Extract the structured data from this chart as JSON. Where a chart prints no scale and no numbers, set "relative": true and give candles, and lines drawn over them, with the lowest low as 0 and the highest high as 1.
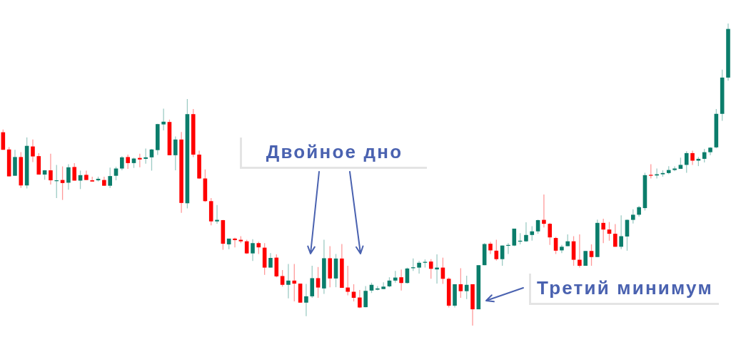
{
  "chart_data": {
    "type": "candlestick",
    "relative": true,
    "categories": [
      null,
      null,
      null,
      null,
      null,
      null,
      null,
      null,
      null,
      null,
      null,
      null,
      null,
      null,
      null,
      null,
      null,
      null,
      null,
      null,
      null,
      null,
      null,
      null,
      null,
      null,
      null,
      null,
      null,
      null,
      null,
      null,
      null,
      null,
      null,
      null,
      null,
      null,
      null,
      null,
      null,
      null,
      null,
      null,
      null,
      null,
      null,
      null,
      null,
      null,
      null,
      null,
      null,
      null,
      null,
      null,
      null,
      null,
      null,
      null,
      null,
      null,
      null,
      null,
      null,
      null,
      null,
      null,
      null,
      null,
      null,
      null,
      null,
      null,
      null,
      null,
      null,
      null,
      null,
      null,
      null,
      null,
      null,
      null,
      null,
      null,
      null,
      null,
      null,
      null,
      null,
      null,
      null,
      null,
      null,
      null,
      null,
      null,
      null,
      null,
      null,
      null,
      null,
      null,
      null,
      null,
      null,
      null,
      null,
      null,
      null,
      null,
      null,
      null,
      null,
      null,
      null,
      null,
      null,
      null,
      null,
      null,
      null
    ],
    "ohlc": [
      [
        0.64,
        0.649,
        0.582,
        0.582
      ],
      [
        0.583,
        0.591,
        0.494,
        0.494
      ],
      [
        0.496,
        0.582,
        0.496,
        0.558
      ],
      [
        0.558,
        0.574,
        0.456,
        0.464
      ],
      [
        0.464,
        0.623,
        0.454,
        0.595
      ],
      [
        0.593,
        0.616,
        0.541,
        0.56
      ],
      [
        0.561,
        0.571,
        0.5,
        0.5
      ],
      [
        0.5,
        0.515,
        0.483,
        0.514
      ],
      [
        0.514,
        0.569,
        0.467,
        0.481
      ],
      [
        0.481,
        0.532,
        0.422,
        0.481
      ],
      [
        0.482,
        0.527,
        0.416,
        0.472
      ],
      [
        0.473,
        0.534,
        0.45,
        0.524
      ],
      [
        0.525,
        0.538,
        0.48,
        0.48
      ],
      [
        0.48,
        0.513,
        0.452,
        0.498
      ],
      [
        0.499,
        0.513,
        0.482,
        0.482
      ],
      [
        0.481,
        0.493,
        0.477,
        0.477
      ],
      [
        0.481,
        0.493,
        0.477,
        0.486
      ],
      [
        0.482,
        0.493,
        0.463,
        0.463
      ],
      [
        0.463,
        0.523,
        0.456,
        0.495
      ],
      [
        0.496,
        0.526,
        0.481,
        0.52
      ],
      [
        0.52,
        0.561,
        0.514,
        0.557
      ],
      [
        0.558,
        0.566,
        0.519,
        0.538
      ],
      [
        0.538,
        0.556,
        0.522,
        0.553
      ],
      [
        0.555,
        0.569,
        0.524,
        0.55
      ],
      [
        0.552,
        0.586,
        0.536,
        0.557
      ],
      [
        0.557,
        0.585,
        0.513,
        0.583
      ],
      [
        0.581,
        0.668,
        0.565,
        0.667
      ],
      [
        0.666,
        0.718,
        0.646,
        0.675
      ],
      [
        0.674,
        0.682,
        0.564,
        0.564
      ],
      [
        0.564,
        0.626,
        0.514,
        0.616
      ],
      [
        0.616,
        0.641,
        0.373,
        0.406
      ],
      [
        0.405,
        0.75,
        0.388,
        0.7
      ],
      [
        0.7,
        0.717,
        0.558,
        0.566
      ],
      [
        0.566,
        0.579,
        0.485,
        0.487
      ],
      [
        0.487,
        0.517,
        0.409,
        0.412
      ],
      [
        0.412,
        0.422,
        0.332,
        0.345
      ],
      [
        0.345,
        0.399,
        0.337,
        0.35
      ],
      [
        0.349,
        0.35,
        0.251,
        0.271
      ],
      [
        0.269,
        0.288,
        0.253,
        0.288
      ],
      [
        0.288,
        0.291,
        0.259,
        0.283
      ],
      [
        0.284,
        0.296,
        0.273,
        0.279
      ],
      [
        0.279,
        0.284,
        0.237,
        0.239
      ],
      [
        0.239,
        0.286,
        0.214,
        0.273
      ],
      [
        0.273,
        0.278,
        0.237,
        0.259
      ],
      [
        0.258,
        0.273,
        0.168,
        0.192
      ],
      [
        0.192,
        0.24,
        0.192,
        0.224
      ],
      [
        0.225,
        0.236,
        0.16,
        0.163
      ],
      [
        0.164,
        0.184,
        0.129,
        0.135
      ],
      [
        0.135,
        0.204,
        0.09,
        0.149
      ],
      [
        0.149,
        0.204,
        0.08,
        0.139
      ],
      [
        0.139,
        0.139,
        0.076,
        0.076
      ],
      [
        0.076,
        0.138,
        0.031,
        0.097
      ],
      [
        0.097,
        0.198,
        0.092,
        0.157
      ],
      [
        0.157,
        0.194,
        0.092,
        0.126
      ],
      [
        0.123,
        0.284,
        0.105,
        0.223
      ],
      [
        0.223,
        0.263,
        0.127,
        0.156
      ],
      [
        0.156,
        0.237,
        0.127,
        0.222
      ],
      [
        0.222,
        0.27,
        0.125,
        0.125
      ],
      [
        0.126,
        0.198,
        0.1,
        0.112
      ],
      [
        0.112,
        0.137,
        0.08,
        0.092
      ],
      [
        0.093,
        0.118,
        0.058,
        0.06
      ],
      [
        0.061,
        0.131,
        0.061,
        0.115
      ],
      [
        0.116,
        0.142,
        0.108,
        0.135
      ],
      [
        0.119,
        0.131,
        0.117,
        0.123
      ],
      [
        0.121,
        0.143,
        0.121,
        0.129
      ],
      [
        0.13,
        0.16,
        0.127,
        0.149
      ],
      [
        0.149,
        0.181,
        0.142,
        0.159
      ],
      [
        0.16,
        0.186,
        0.116,
        0.141
      ],
      [
        0.141,
        0.192,
        0.139,
        0.189
      ],
      [
        0.19,
        0.222,
        0.181,
        0.193
      ],
      [
        0.192,
        0.214,
        0.172,
        0.208
      ],
      [
        0.208,
        0.219,
        0.192,
        0.211
      ],
      [
        0.212,
        0.22,
        0.155,
        0.188
      ],
      [
        0.186,
        0.236,
        0.139,
        0.192
      ],
      [
        0.192,
        0.225,
        0.138,
        0.155
      ],
      [
        0.155,
        0.159,
        0.06,
        0.066
      ],
      [
        0.066,
        0.137,
        0.06,
        0.137
      ],
      [
        0.137,
        0.19,
        0.092,
        0.114
      ],
      [
        0.114,
        0.165,
        0.088,
        0.135
      ],
      [
        0.137,
        0.137,
        0,
        0.054
      ],
      [
        0.054,
        0.2,
        0.054,
        0.2
      ],
      [
        0.2,
        0.273,
        0.2,
        0.27
      ],
      [
        0.271,
        0.277,
        0.237,
        0.249
      ],
      [
        0.248,
        0.284,
        0.215,
        0.22
      ],
      [
        0.22,
        0.265,
        0.198,
        0.265
      ],
      [
        0.265,
        0.273,
        0.237,
        0.267
      ],
      [
        0.265,
        0.321,
        0.263,
        0.321
      ],
      [
        0.278,
        0.306,
        0.269,
        0.281
      ],
      [
        0.279,
        0.342,
        0.277,
        0.3
      ],
      [
        0.3,
        0.329,
        0.281,
        0.312
      ],
      [
        0.312,
        0.351,
        0.304,
        0.349
      ],
      [
        0.35,
        0.434,
        0.325,
        0.337
      ],
      [
        0.337,
        0.34,
        0.267,
        0.292
      ],
      [
        0.29,
        0.294,
        0.237,
        0.248
      ],
      [
        0.249,
        0.267,
        0.24,
        0.261
      ],
      [
        0.263,
        0.302,
        0.263,
        0.279
      ],
      [
        0.279,
        0.296,
        0.198,
        0.218
      ],
      [
        0.218,
        0.302,
        0.192,
        0.198
      ],
      [
        0.198,
        0.247,
        0.198,
        0.247
      ],
      [
        0.247,
        0.269,
        0.198,
        0.227
      ],
      [
        0.227,
        0.351,
        0.227,
        0.34
      ],
      [
        0.34,
        0.354,
        0.273,
        0.318
      ],
      [
        0.318,
        0.343,
        0.281,
        0.304
      ],
      [
        0.304,
        0.336,
        0.261,
        0.261
      ],
      [
        0.261,
        0.365,
        0.253,
        0.296
      ],
      [
        0.295,
        0.351,
        0.248,
        0.35
      ],
      [
        0.35,
        0.385,
        0.338,
        0.367
      ],
      [
        0.367,
        0.396,
        0.361,
        0.392
      ],
      [
        0.389,
        0.506,
        0.381,
        0.498
      ],
      [
        0.499,
        0.534,
        0.487,
        0.498
      ],
      [
        0.497,
        0.52,
        0.487,
        0.501
      ],
      [
        0.501,
        0.514,
        0.493,
        0.505
      ],
      [
        0.505,
        0.528,
        0.501,
        0.515
      ],
      [
        0.515,
        0.527,
        0.511,
        0.52
      ],
      [
        0.519,
        0.556,
        0.519,
        0.532
      ],
      [
        0.532,
        0.577,
        0.506,
        0.571
      ],
      [
        0.571,
        0.579,
        0.532,
        0.546
      ],
      [
        0.546,
        0.558,
        0.528,
        0.552
      ],
      [
        0.552,
        0.585,
        0.54,
        0.574
      ],
      [
        0.574,
        0.591,
        0.564,
        0.589
      ],
      [
        0.59,
        0.717,
        0.587,
        0.701
      ],
      [
        0.701,
        0.847,
        0.678,
        0.821
      ],
      [
        0.821,
        1,
        0.811,
        0.982
      ]
    ],
    "colors": [
      "#ff0000",
      "#ff0000",
      "#0b7d6b",
      "#ff0000",
      "#0b7d6b",
      "#ff0000",
      "#ff0000",
      "#0b7d6b",
      "#ff0000",
      "#0b7d6b",
      "#ff0000",
      "#0b7d6b",
      "#ff0000",
      "#0b7d6b",
      "#ff0000",
      "#ff0000",
      "#0b7d6b",
      "#ff0000",
      "#0b7d6b",
      "#0b7d6b",
      "#0b7d6b",
      "#ff0000",
      "#0b7d6b",
      "#ff0000",
      "#0b7d6b",
      "#0b7d6b",
      "#0b7d6b",
      "#0b7d6b",
      "#ff0000",
      "#0b7d6b",
      "#ff0000",
      "#0b7d6b",
      "#ff0000",
      "#ff0000",
      "#ff0000",
      "#ff0000",
      "#0b7d6b",
      "#ff0000",
      "#0b7d6b",
      "#ff0000",
      "#ff0000",
      "#ff0000",
      "#0b7d6b",
      "#ff0000",
      "#ff0000",
      "#0b7d6b",
      "#ff0000",
      "#ff0000",
      "#0b7d6b",
      "#ff0000",
      "#ff0000",
      "#0b7d6b",
      "#0b7d6b",
      "#ff0000",
      "#0b7d6b",
      "#ff0000",
      "#0b7d6b",
      "#ff0000",
      "#ff0000",
      "#ff0000",
      "#ff0000",
      "#0b7d6b",
      "#0b7d6b",
      "#0b7d6b",
      "#0b7d6b",
      "#0b7d6b",
      "#0b7d6b",
      "#ff0000",
      "#0b7d6b",
      "#0b7d6b",
      "#0b7d6b",
      "#0b7d6b",
      "#ff0000",
      "#0b7d6b",
      "#ff0000",
      "#ff0000",
      "#0b7d6b",
      "#ff0000",
      "#0b7d6b",
      "#ff0000",
      "#0b7d6b",
      "#0b7d6b",
      "#ff0000",
      "#ff0000",
      "#0b7d6b",
      "#0b7d6b",
      "#0b7d6b",
      "#0b7d6b",
      "#0b7d6b",
      "#0b7d6b",
      "#0b7d6b",
      "#ff0000",
      "#ff0000",
      "#ff0000",
      "#0b7d6b",
      "#0b7d6b",
      "#ff0000",
      "#ff0000",
      "#0b7d6b",
      "#ff0000",
      "#0b7d6b",
      "#ff0000",
      "#ff0000",
      "#ff0000",
      "#0b7d6b",
      "#0b7d6b",
      "#0b7d6b",
      "#0b7d6b",
      "#0b7d6b",
      "#ff0000",
      "#0b7d6b",
      "#0b7d6b",
      "#0b7d6b",
      "#0b7d6b",
      "#0b7d6b",
      "#0b7d6b",
      "#ff0000",
      "#0b7d6b",
      "#0b7d6b",
      "#0b7d6b",
      "#0b7d6b",
      "#0b7d6b",
      "#0b7d6b"
    ],
    "annotations": [
      "Двойное дно",
      "Третий минимум"
    ]
  }
}
